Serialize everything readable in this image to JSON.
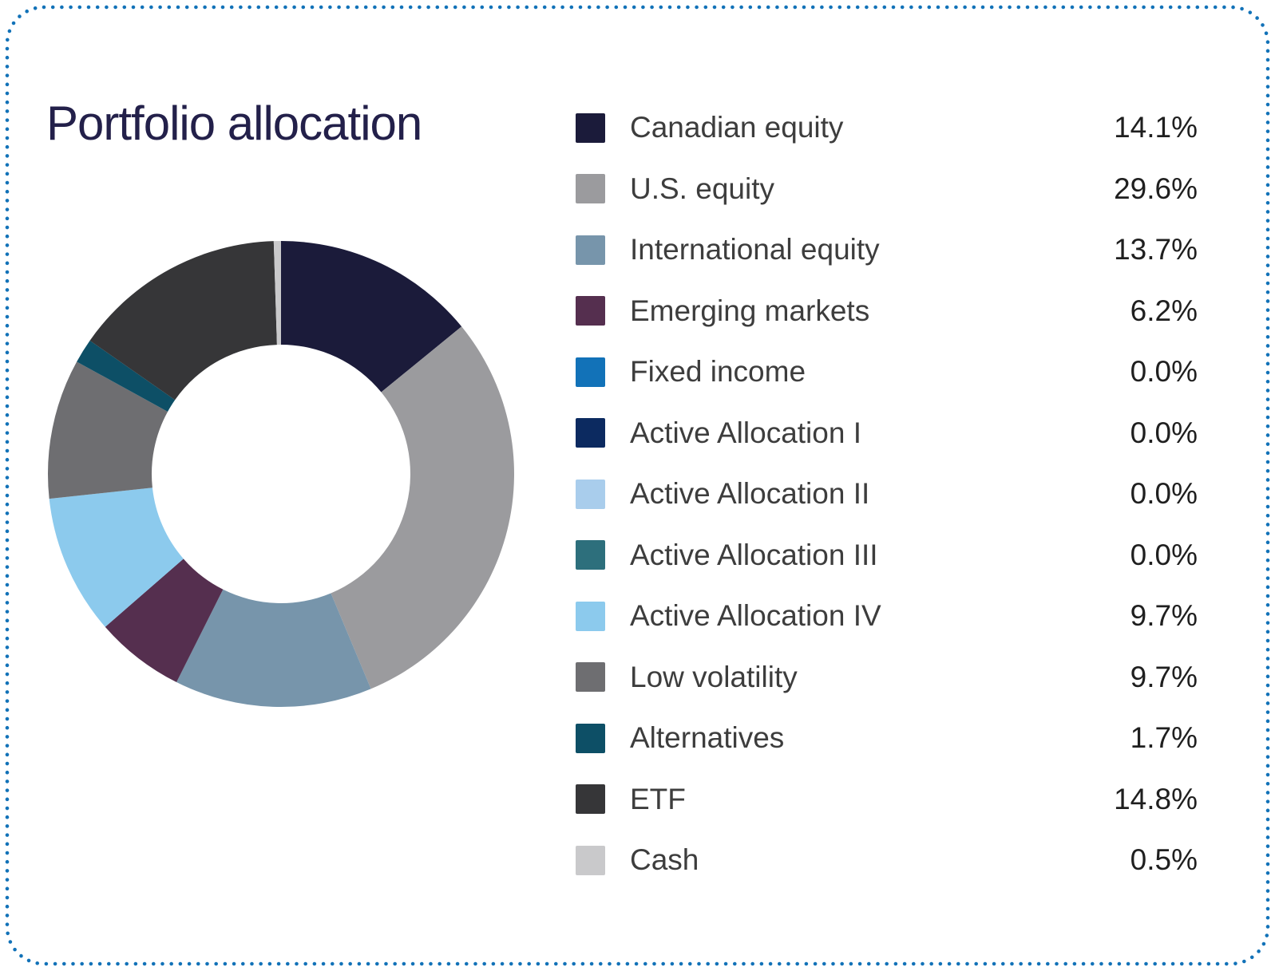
{
  "title": "Portfolio allocation",
  "border_color": "#1272b8",
  "title_color": "#23204a",
  "chart_data": {
    "type": "pie",
    "subtype": "donut",
    "title": "Portfolio allocation",
    "start_angle_deg": 0,
    "direction": "clockwise",
    "legend_position": "right",
    "inner_radius_ratio": 0.555,
    "series": [
      {
        "label": "Canadian equity",
        "value_pct": 14.1,
        "display": "14.1%",
        "color": "#1b1b3a"
      },
      {
        "label": "U.S. equity",
        "value_pct": 29.6,
        "display": "29.6%",
        "color": "#9b9b9e"
      },
      {
        "label": "International equity",
        "value_pct": 13.7,
        "display": "13.7%",
        "color": "#7795ab"
      },
      {
        "label": "Emerging markets",
        "value_pct": 6.2,
        "display": "6.2%",
        "color": "#552f4f"
      },
      {
        "label": "Fixed income",
        "value_pct": 0.0,
        "display": "0.0%",
        "color": "#1272b8"
      },
      {
        "label": "Active Allocation I",
        "value_pct": 0.0,
        "display": "0.0%",
        "color": "#0c2a60"
      },
      {
        "label": "Active Allocation II",
        "value_pct": 0.0,
        "display": "0.0%",
        "color": "#a9cdec"
      },
      {
        "label": "Active Allocation III",
        "value_pct": 0.0,
        "display": "0.0%",
        "color": "#2d6f7c"
      },
      {
        "label": "Active Allocation IV",
        "value_pct": 9.7,
        "display": "9.7%",
        "color": "#8ccaed"
      },
      {
        "label": "Low volatility",
        "value_pct": 9.7,
        "display": "9.7%",
        "color": "#6e6e71"
      },
      {
        "label": "Alternatives",
        "value_pct": 1.7,
        "display": "1.7%",
        "color": "#0d4f66"
      },
      {
        "label": "ETF",
        "value_pct": 14.8,
        "display": "14.8%",
        "color": "#363638"
      },
      {
        "label": "Cash",
        "value_pct": 0.5,
        "display": "0.5%",
        "color": "#c9c9cb"
      }
    ]
  }
}
